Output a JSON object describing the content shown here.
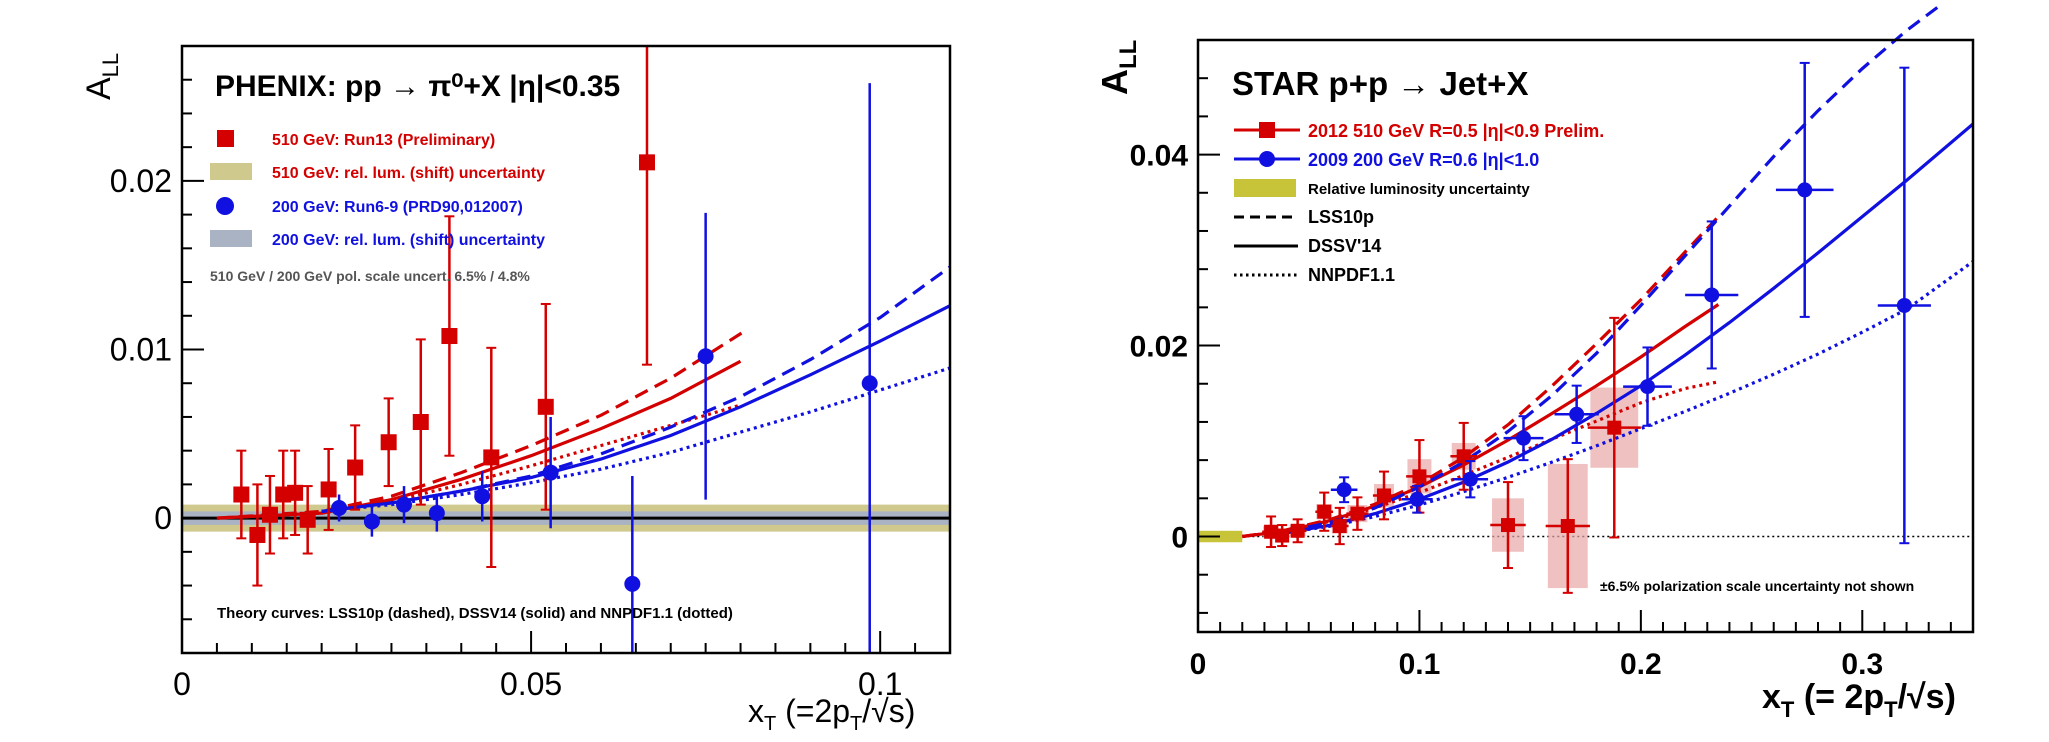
{
  "charts": [
    {
      "type": "scatter",
      "title": "PHENIX: pp → π⁰+X  |η|<0.35",
      "xlabel": "x_T (=2p_T/√s)",
      "ylabel": "A_LL",
      "xlim": [
        0,
        0.11
      ],
      "ylim": [
        -0.008,
        0.028
      ],
      "xticks": [
        0,
        0.05,
        0.1
      ],
      "xtick_labels": [
        "0",
        "0.05",
        "0.1"
      ],
      "yticks": [
        0,
        0.01,
        0.02
      ],
      "ytick_labels": [
        "0",
        "0.01",
        "0.02"
      ],
      "legend": [
        {
          "label": "510 GeV: Run13 (Preliminary)",
          "color": "#d40000",
          "marker": "square"
        },
        {
          "label": "510 GeV: rel. lum. (shift) uncertainty",
          "color": "#c9c27c",
          "marker": "band"
        },
        {
          "label": "200 GeV: Run6-9 (PRD90,012007)",
          "color": "#1010e0",
          "marker": "circle"
        },
        {
          "label": "200 GeV: rel. lum. (shift) uncertainty",
          "color": "#a9b3c4",
          "marker": "band"
        }
      ],
      "note": "510 GeV / 200 GeV pol. scale uncert. 6.5% / 4.8%",
      "theory_note": "Theory curves: LSS10p (dashed), DSSV14 (solid) and NNPDF1.1 (dotted)",
      "bands": [
        {
          "name": "510 GeV rel. lum.",
          "y0": -0.0008,
          "y1": 0.0008,
          "color": "#cfc98e"
        },
        {
          "name": "200 GeV rel. lum.",
          "y0": -0.0004,
          "y1": 0.0004,
          "color": "#a9b3c4"
        }
      ],
      "series": [
        {
          "name": "510 GeV: Run13 (Preliminary)",
          "color": "#d40000",
          "marker": "square",
          "x": [
            0.0085,
            0.0108,
            0.0126,
            0.0145,
            0.0162,
            0.018,
            0.021,
            0.0248,
            0.0296,
            0.0342,
            0.0383,
            0.0443,
            0.0521,
            0.0666
          ],
          "y": [
            0.0014,
            -0.001,
            0.0002,
            0.0014,
            0.0015,
            -0.0001,
            0.0017,
            0.003,
            0.0045,
            0.0057,
            0.0108,
            0.0036,
            0.0066,
            0.0211
          ],
          "err": [
            0.0026,
            0.003,
            0.0023,
            0.0026,
            0.0025,
            0.002,
            0.0024,
            0.0025,
            0.0026,
            0.0049,
            0.0071,
            0.0065,
            0.0061,
            0.012
          ]
        },
        {
          "name": "200 GeV: Run6-9 (PRD90,012007)",
          "color": "#1010e0",
          "marker": "circle",
          "x": [
            0.0225,
            0.0272,
            0.0318,
            0.0365,
            0.043,
            0.0528,
            0.0645,
            0.075,
            0.0985
          ],
          "y": [
            0.0006,
            -0.0002,
            0.0008,
            0.0003,
            0.0013,
            0.0027,
            -0.0039,
            0.0096,
            0.008
          ],
          "err": [
            0.0008,
            0.0009,
            0.0011,
            0.0011,
            0.0015,
            0.0033,
            0.0064,
            0.0085,
            0.0178
          ]
        }
      ],
      "curves": [
        {
          "name": "LSS10p 510",
          "style": "dashed",
          "color": "#d40000",
          "x": [
            0.005,
            0.02,
            0.03,
            0.04,
            0.05,
            0.06,
            0.07,
            0.081
          ],
          "y": [
            0.0,
            0.0004,
            0.0013,
            0.0027,
            0.0043,
            0.0061,
            0.0083,
            0.0112
          ]
        },
        {
          "name": "DSSV14 510",
          "style": "solid",
          "color": "#d40000",
          "x": [
            0.005,
            0.02,
            0.03,
            0.04,
            0.05,
            0.06,
            0.07,
            0.08
          ],
          "y": [
            0.0,
            0.0003,
            0.0011,
            0.0023,
            0.0037,
            0.0053,
            0.0071,
            0.0093
          ]
        },
        {
          "name": "NNPDF1.1 510",
          "style": "dotted",
          "color": "#d40000",
          "x": [
            0.005,
            0.02,
            0.03,
            0.04,
            0.05,
            0.06,
            0.07,
            0.08
          ],
          "y": [
            0.0,
            0.0003,
            0.001,
            0.002,
            0.0031,
            0.0043,
            0.0055,
            0.0067
          ]
        },
        {
          "name": "LSS10p 200",
          "style": "dashed",
          "color": "#1010e0",
          "x": [
            0.02,
            0.03,
            0.04,
            0.05,
            0.06,
            0.07,
            0.08,
            0.09,
            0.1,
            0.11
          ],
          "y": [
            0.0004,
            0.0009,
            0.0016,
            0.0025,
            0.0038,
            0.0054,
            0.0072,
            0.0094,
            0.0119,
            0.0149
          ]
        },
        {
          "name": "DSSV14 200",
          "style": "solid",
          "color": "#1010e0",
          "x": [
            0.02,
            0.03,
            0.04,
            0.05,
            0.06,
            0.07,
            0.08,
            0.09,
            0.1,
            0.11
          ],
          "y": [
            0.0004,
            0.0009,
            0.0016,
            0.0024,
            0.0035,
            0.0049,
            0.0066,
            0.0085,
            0.0105,
            0.0126
          ]
        },
        {
          "name": "NNPDF1.1 200",
          "style": "dotted",
          "color": "#1010e0",
          "x": [
            0.02,
            0.03,
            0.04,
            0.05,
            0.06,
            0.07,
            0.08,
            0.09,
            0.1,
            0.11
          ],
          "y": [
            0.0004,
            0.0008,
            0.0014,
            0.0021,
            0.0029,
            0.0039,
            0.0051,
            0.0063,
            0.0076,
            0.0089
          ]
        }
      ]
    },
    {
      "type": "scatter",
      "title": "STAR p+p  → Jet+X",
      "xlabel": "x_T (= 2p_T/√s)",
      "ylabel": "A_LL",
      "xlim": [
        0,
        0.35
      ],
      "ylim": [
        -0.01,
        0.052
      ],
      "xticks": [
        0,
        0.1,
        0.2,
        0.3
      ],
      "xtick_labels": [
        "0",
        "0.1",
        "0.2",
        "0.3"
      ],
      "yticks": [
        0,
        0.02,
        0.04
      ],
      "ytick_labels": [
        "0",
        "0.02",
        "0.04"
      ],
      "legend": [
        {
          "label": "2012 510 GeV R=0.5 |η|<0.9 Prelim.",
          "color": "#d40000",
          "marker": "square"
        },
        {
          "label": "2009 200 GeV R=0.6 |η|<1.0",
          "color": "#1010e0",
          "marker": "circle"
        },
        {
          "label": "Relative luminosity uncertainty",
          "color": "#c8c43a",
          "marker": "band"
        },
        {
          "label": "LSS10p",
          "color": "#000000",
          "marker": "dashed"
        },
        {
          "label": "DSSV'14",
          "color": "#000000",
          "marker": "solid"
        },
        {
          "label": "NNPDF1.1",
          "color": "#000000",
          "marker": "dotted"
        }
      ],
      "note": "±6.5% polarization scale uncertainty not shown",
      "lumi_band": {
        "x0": 0,
        "x1": 0.02,
        "y0": -0.0006,
        "y1": 0.0006,
        "color": "#c8c43a"
      },
      "series": [
        {
          "name": "2012 510 GeV R=0.5 |η|<0.9 Prelim.",
          "color": "#d40000",
          "marker": "square",
          "x": [
            0.033,
            0.038,
            0.045,
            0.057,
            0.064,
            0.072,
            0.084,
            0.1,
            0.12,
            0.14,
            0.167,
            0.188
          ],
          "y": [
            0.0005,
            0.0001,
            0.0006,
            0.0026,
            0.0011,
            0.0024,
            0.0043,
            0.0063,
            0.0084,
            0.0012,
            0.0011,
            0.0114
          ],
          "err": [
            0.0016,
            0.0011,
            0.0012,
            0.002,
            0.0019,
            0.0017,
            0.0025,
            0.0038,
            0.0035,
            0.0045,
            0.007,
            0.0115
          ],
          "xerr": [
            0.004,
            0.003,
            0.004,
            0.004,
            0.004,
            0.005,
            0.005,
            0.006,
            0.006,
            0.008,
            0.01,
            0.012
          ],
          "syst": [
            0.0006,
            0.0004,
            0.0006,
            0.0008,
            0.0008,
            0.0009,
            0.0012,
            0.0018,
            0.0014,
            0.0028,
            0.0065,
            0.0042
          ]
        },
        {
          "name": "2009 200 GeV R=0.6 |η|<1.0",
          "color": "#1010e0",
          "marker": "circle",
          "x": [
            0.066,
            0.099,
            0.123,
            0.147,
            0.171,
            0.203,
            0.232,
            0.274,
            0.319
          ],
          "y": [
            0.0049,
            0.0039,
            0.006,
            0.0103,
            0.0128,
            0.0157,
            0.0253,
            0.0363,
            0.0242
          ],
          "err": [
            0.0013,
            0.0014,
            0.0019,
            0.0023,
            0.003,
            0.0041,
            0.0077,
            0.0133,
            0.0249
          ],
          "xerr": [
            0.006,
            0.007,
            0.008,
            0.009,
            0.01,
            0.011,
            0.012,
            0.013,
            0.012
          ]
        }
      ],
      "curves": [
        {
          "name": "LSS10p 510",
          "style": "dashed",
          "color": "#d40000",
          "x": [
            0.02,
            0.04,
            0.06,
            0.08,
            0.1,
            0.12,
            0.14,
            0.16,
            0.18,
            0.2,
            0.22,
            0.235
          ],
          "y": [
            0.0,
            0.0007,
            0.0018,
            0.0034,
            0.0055,
            0.0083,
            0.0117,
            0.0158,
            0.0202,
            0.0248,
            0.0298,
            0.0335
          ]
        },
        {
          "name": "DSSV14 510",
          "style": "solid",
          "color": "#d40000",
          "x": [
            0.02,
            0.04,
            0.06,
            0.08,
            0.1,
            0.12,
            0.14,
            0.16,
            0.18,
            0.2,
            0.22,
            0.235
          ],
          "y": [
            0.0,
            0.0006,
            0.0017,
            0.0032,
            0.0052,
            0.0075,
            0.0101,
            0.0129,
            0.0158,
            0.0188,
            0.022,
            0.0243
          ]
        },
        {
          "name": "NNPDF1.1 510",
          "style": "dotted",
          "color": "#d40000",
          "x": [
            0.02,
            0.04,
            0.06,
            0.08,
            0.1,
            0.12,
            0.14,
            0.16,
            0.18,
            0.2,
            0.22,
            0.235
          ],
          "y": [
            0.0,
            0.0006,
            0.0016,
            0.003,
            0.0046,
            0.0064,
            0.0083,
            0.0102,
            0.0121,
            0.014,
            0.0155,
            0.0162
          ]
        },
        {
          "name": "LSS10p 200",
          "style": "dashed",
          "color": "#1010e0",
          "x": [
            0.04,
            0.06,
            0.08,
            0.1,
            0.12,
            0.14,
            0.16,
            0.18,
            0.2,
            0.22,
            0.24,
            0.26,
            0.28,
            0.3,
            0.32,
            0.335
          ],
          "y": [
            0.0005,
            0.0015,
            0.003,
            0.0052,
            0.0078,
            0.011,
            0.0148,
            0.0192,
            0.0242,
            0.0294,
            0.0346,
            0.0398,
            0.0446,
            0.049,
            0.053,
            0.0556
          ]
        },
        {
          "name": "DSSV14 200",
          "style": "solid",
          "color": "#1010e0",
          "x": [
            0.04,
            0.06,
            0.08,
            0.1,
            0.12,
            0.14,
            0.16,
            0.18,
            0.2,
            0.22,
            0.24,
            0.26,
            0.28,
            0.3,
            0.32,
            0.35
          ],
          "y": [
            0.0004,
            0.0012,
            0.0024,
            0.0039,
            0.0057,
            0.0078,
            0.0102,
            0.0129,
            0.0158,
            0.019,
            0.0224,
            0.026,
            0.0297,
            0.0335,
            0.0373,
            0.0432
          ]
        },
        {
          "name": "NNPDF1.1 200",
          "style": "dotted",
          "color": "#1010e0",
          "x": [
            0.04,
            0.06,
            0.08,
            0.1,
            0.12,
            0.14,
            0.16,
            0.18,
            0.2,
            0.22,
            0.24,
            0.26,
            0.28,
            0.3,
            0.32,
            0.35
          ],
          "y": [
            0.0004,
            0.0011,
            0.0021,
            0.0033,
            0.0047,
            0.0062,
            0.0078,
            0.0095,
            0.0113,
            0.0131,
            0.015,
            0.017,
            0.0191,
            0.0214,
            0.0238,
            0.0288
          ]
        }
      ]
    }
  ]
}
